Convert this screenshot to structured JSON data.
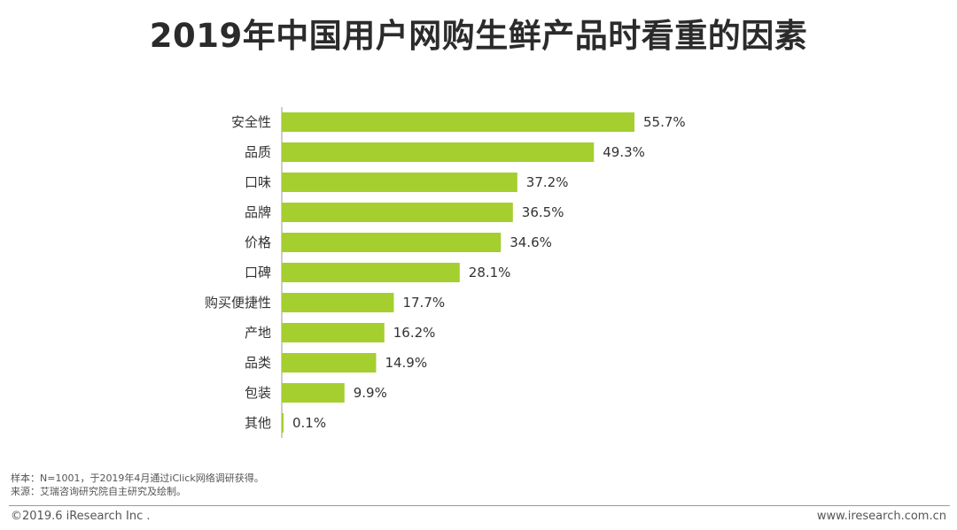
{
  "title": "2019年中国用户网购生鲜产品时看重的因素",
  "chart_data": {
    "type": "bar",
    "orientation": "horizontal",
    "categories": [
      "安全性",
      "品质",
      "口味",
      "品牌",
      "价格",
      "口碑",
      "购买便捷性",
      "产地",
      "品类",
      "包装",
      "其他"
    ],
    "values": [
      55.7,
      49.3,
      37.2,
      36.5,
      34.6,
      28.1,
      17.7,
      16.2,
      14.9,
      9.9,
      0.1
    ],
    "value_labels": [
      "55.7%",
      "49.3%",
      "37.2%",
      "36.5%",
      "34.6%",
      "28.1%",
      "17.7%",
      "16.2%",
      "14.9%",
      "9.9%",
      "0.1%"
    ],
    "unit": "%",
    "bar_color": "#a4cf2f",
    "xlim": [
      0,
      55.7
    ],
    "grid": false,
    "legend": "none"
  },
  "notes": {
    "sample": "样本：N=1001，于2019年4月通过iClick网络调研获得。",
    "source": "来源：艾瑞咨询研究院自主研究及绘制。"
  },
  "footer": {
    "copyright": "©2019.6 iResearch Inc .",
    "website": "www.iresearch.com.cn"
  }
}
